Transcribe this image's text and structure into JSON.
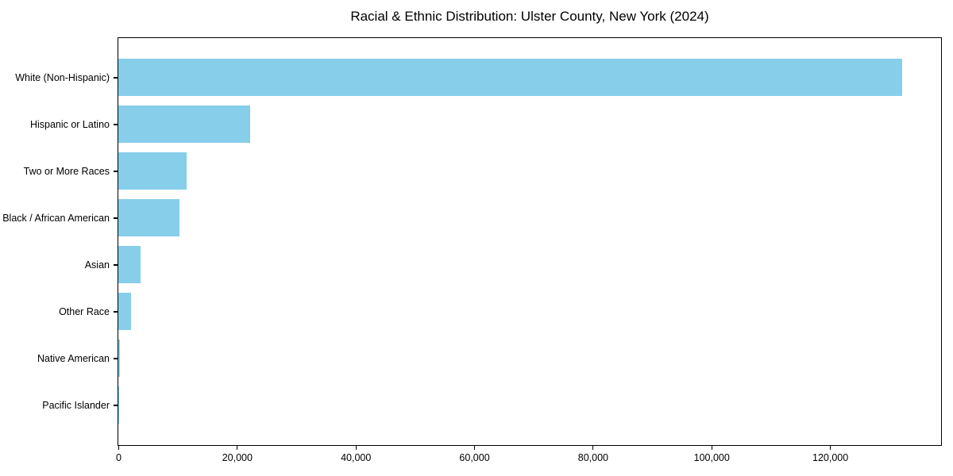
{
  "chart_data": {
    "type": "bar",
    "orientation": "horizontal",
    "title": "Racial & Ethnic Distribution: Ulster County, New York (2024)",
    "categories": [
      "White (Non-Hispanic)",
      "Hispanic or Latino",
      "Two or More Races",
      "Black / African American",
      "Asian",
      "Other Race",
      "Native American",
      "Pacific Islander"
    ],
    "values": [
      132200,
      22200,
      11500,
      10300,
      3700,
      2200,
      300,
      50
    ],
    "xlabel": "",
    "ylabel": "",
    "xlim": [
      0,
      138600
    ],
    "xticks": {
      "values": [
        0,
        20000,
        40000,
        60000,
        80000,
        100000,
        120000
      ],
      "labels": [
        "0",
        "20,000",
        "40,000",
        "60,000",
        "80,000",
        "100,000",
        "120,000"
      ]
    },
    "grid": false,
    "legend": "none",
    "bar_color": "#87CEEB"
  },
  "colors": {
    "bar": "#87CEEB",
    "axis": "#000000",
    "text": "#000000",
    "background": "#ffffff"
  }
}
